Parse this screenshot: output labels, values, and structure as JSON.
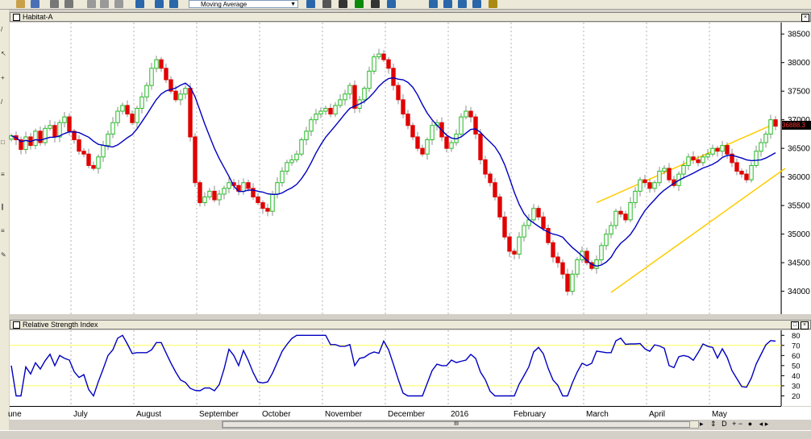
{
  "toolbar": {
    "indicator_select": "Moving Average",
    "icons": [
      "open-icon",
      "save-icon",
      "print-icon",
      "preview-icon",
      "cut-icon",
      "copy-icon",
      "paste-icon",
      "undo-icon",
      "crosshair-icon",
      "zoom-icon",
      "indicator-icon",
      "tools-icon",
      "formula-icon",
      "dollar-icon",
      "binoculars-icon",
      "help-icon",
      "window-icon",
      "tile-vertical-icon",
      "tile-horizontal-icon",
      "grid-icon",
      "settings-icon"
    ]
  },
  "price_panel": {
    "title": "Habitat-A",
    "last_price_label": "36888.3"
  },
  "rsi_panel": {
    "title": "Relative Strength Index"
  },
  "chart_data": [
    {
      "type": "candlestick",
      "title": "Habitat-A",
      "ylim": [
        33600,
        38700
      ],
      "yticks": [
        34000,
        34500,
        35000,
        35500,
        36000,
        36500,
        37000,
        37500,
        38000,
        38500
      ],
      "xticks": [
        "June",
        "July",
        "August",
        "September",
        "October",
        "November",
        "December",
        "2016",
        "February",
        "March",
        "April",
        "May"
      ],
      "moving_average_color": "#0000c0",
      "up_color": "#22bb22",
      "down_color": "#e00000",
      "channel_color": "#ffcc00",
      "closes": [
        36720,
        36650,
        36480,
        36700,
        36550,
        36800,
        36600,
        36850,
        36900,
        36700,
        36950,
        37050,
        36800,
        36650,
        36450,
        36400,
        36200,
        36150,
        36350,
        36550,
        36750,
        36950,
        37150,
        37250,
        37100,
        36950,
        37200,
        37400,
        37600,
        37900,
        38050,
        37900,
        37700,
        37500,
        37350,
        37450,
        37550,
        36700,
        35900,
        35550,
        35650,
        35750,
        35600,
        35700,
        35800,
        35900,
        35850,
        35750,
        35900,
        35800,
        35650,
        35550,
        35450,
        35400,
        35700,
        35900,
        36100,
        36250,
        36300,
        36400,
        36650,
        36800,
        37000,
        37100,
        37150,
        37200,
        37100,
        37250,
        37350,
        37450,
        37600,
        37200,
        37350,
        37550,
        37850,
        38100,
        38150,
        38050,
        37900,
        37600,
        37350,
        37100,
        36900,
        36700,
        36500,
        36400,
        36650,
        36900,
        36950,
        36700,
        36500,
        36600,
        36750,
        37050,
        37150,
        37050,
        36750,
        36300,
        36050,
        35900,
        35650,
        35300,
        34950,
        34700,
        34650,
        34950,
        35150,
        35250,
        35450,
        35300,
        35100,
        34850,
        34600,
        34500,
        34300,
        34000,
        34300,
        34550,
        34700,
        34500,
        34400,
        34550,
        34800,
        35000,
        35150,
        35400,
        35350,
        35250,
        35550,
        35750,
        35950,
        35900,
        35800,
        35900,
        36100,
        36150,
        35950,
        35850,
        36050,
        36200,
        36350,
        36300,
        36250,
        36350,
        36400,
        36500,
        36450,
        36550,
        36400,
        36250,
        36100,
        36050,
        35950,
        36200,
        36450,
        36600,
        36750,
        37000,
        36888
      ]
    },
    {
      "type": "line",
      "title": "Relative Strength Index",
      "ylim": [
        10,
        85
      ],
      "yticks": [
        20,
        30,
        40,
        50,
        60,
        70,
        80
      ],
      "reference_lines": [
        70,
        30
      ],
      "reference_color": "#ffff55",
      "line_color": "#0000c0"
    }
  ],
  "footer": {
    "nav_label": "D",
    "scroll_grip": "III"
  }
}
